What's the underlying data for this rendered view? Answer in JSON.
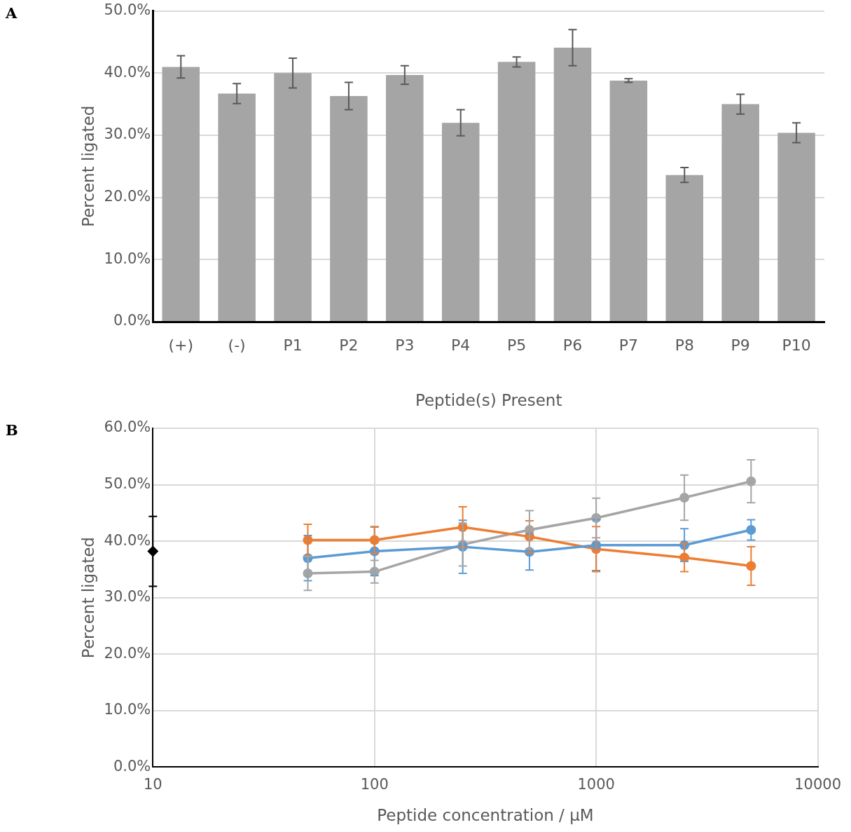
{
  "chart_data": [
    {
      "type": "bar",
      "annotations": [
        "A"
      ],
      "xlabel": "Peptide(s) Present",
      "ylabel": "Percent ligated",
      "categories": [
        "(+)",
        "(-)",
        "P1",
        "P2",
        "P3",
        "P4",
        "P5",
        "P6",
        "P7",
        "P8",
        "P9",
        "P10"
      ],
      "values": [
        41.0,
        36.7,
        40.0,
        36.3,
        39.7,
        32.0,
        41.8,
        44.1,
        38.8,
        23.6,
        35.0,
        30.4
      ],
      "errors": [
        1.8,
        1.6,
        2.4,
        2.2,
        1.5,
        2.1,
        0.8,
        2.9,
        0.3,
        1.2,
        1.6,
        1.6
      ],
      "color": "#a5a5a5",
      "ylim": [
        0,
        50
      ],
      "yticks": [
        {
          "value": 0,
          "label": "0.0%"
        },
        {
          "value": 10,
          "label": "10.0%"
        },
        {
          "value": 20,
          "label": "20.0%"
        },
        {
          "value": 30,
          "label": "30.0%"
        },
        {
          "value": 40,
          "label": "40.0%"
        },
        {
          "value": 50,
          "label": "50.0%"
        }
      ],
      "grid": "y",
      "legend": false
    },
    {
      "type": "line",
      "annotations": [
        "B"
      ],
      "xlabel": "Peptide concentration / µM",
      "ylabel": "Percent ligated",
      "log": "x",
      "marker": "circle",
      "line_style": "solid",
      "legend": false,
      "grid": true,
      "x": [
        50,
        100,
        250,
        500,
        1000,
        2500,
        5000
      ],
      "series": [
        {
          "color": "#5b9bd5",
          "values": [
            37.0,
            38.2,
            39.0,
            38.1,
            39.3,
            39.3,
            42.0
          ],
          "errors": [
            4.0,
            4.3,
            4.7,
            3.2,
            4.5,
            2.9,
            1.8
          ]
        },
        {
          "color": "#ed7d31",
          "values": [
            40.2,
            40.2,
            42.5,
            40.8,
            38.6,
            37.1,
            35.6
          ],
          "errors": [
            2.8,
            2.4,
            3.6,
            2.8,
            4.0,
            2.5,
            3.4
          ]
        },
        {
          "color": "#a5a5a5",
          "values": [
            34.3,
            34.6,
            39.4,
            42.0,
            44.1,
            47.7,
            50.6
          ],
          "errors": [
            3.0,
            2.0,
            3.8,
            3.4,
            3.5,
            4.0,
            3.8
          ]
        },
        {
          "type": "scatter",
          "marker": "diamond",
          "color": "#000000",
          "x": [
            10
          ],
          "values": [
            38.2
          ],
          "errors": [
            6.2
          ]
        }
      ],
      "xlim": [
        10,
        10000
      ],
      "xticks": [
        10,
        100,
        1000,
        10000
      ],
      "ylim": [
        0,
        60
      ],
      "yticks": [
        {
          "value": 0,
          "label": "0.0%"
        },
        {
          "value": 10,
          "label": "10.0%"
        },
        {
          "value": 20,
          "label": "20.0%"
        },
        {
          "value": 30,
          "label": "30.0%"
        },
        {
          "value": 40,
          "label": "40.0%"
        },
        {
          "value": 50,
          "label": "50.0%"
        },
        {
          "value": 60,
          "label": "60.0%"
        }
      ]
    }
  ]
}
